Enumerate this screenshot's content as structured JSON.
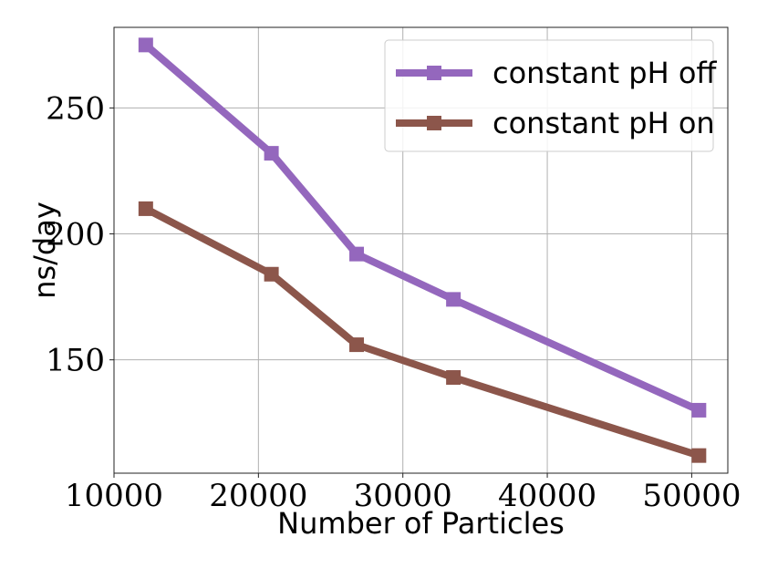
{
  "chart_data": {
    "type": "line",
    "title": "",
    "xlabel": "Number of Particles",
    "ylabel": "ns/day",
    "xlim": [
      10000,
      52500
    ],
    "ylim": [
      105,
      282
    ],
    "xticks": [
      10000,
      20000,
      30000,
      40000,
      50000
    ],
    "xtick_labels": [
      "10000",
      "20000",
      "30000",
      "40000",
      "50000"
    ],
    "yticks": [
      150,
      200,
      250
    ],
    "ytick_labels": [
      "150",
      "200",
      "250"
    ],
    "grid": true,
    "legend_position": "top-right",
    "series": [
      {
        "name": "constant pH off",
        "color": "#9467bd",
        "marker": "square",
        "x": [
          12200,
          20900,
          26800,
          33500,
          50500
        ],
        "y": [
          275,
          232,
          192,
          174,
          130
        ]
      },
      {
        "name": "constant pH on",
        "color": "#8c564b",
        "marker": "square",
        "x": [
          12200,
          20900,
          26800,
          33500,
          50500
        ],
        "y": [
          210,
          184,
          156,
          143,
          112
        ]
      }
    ]
  }
}
